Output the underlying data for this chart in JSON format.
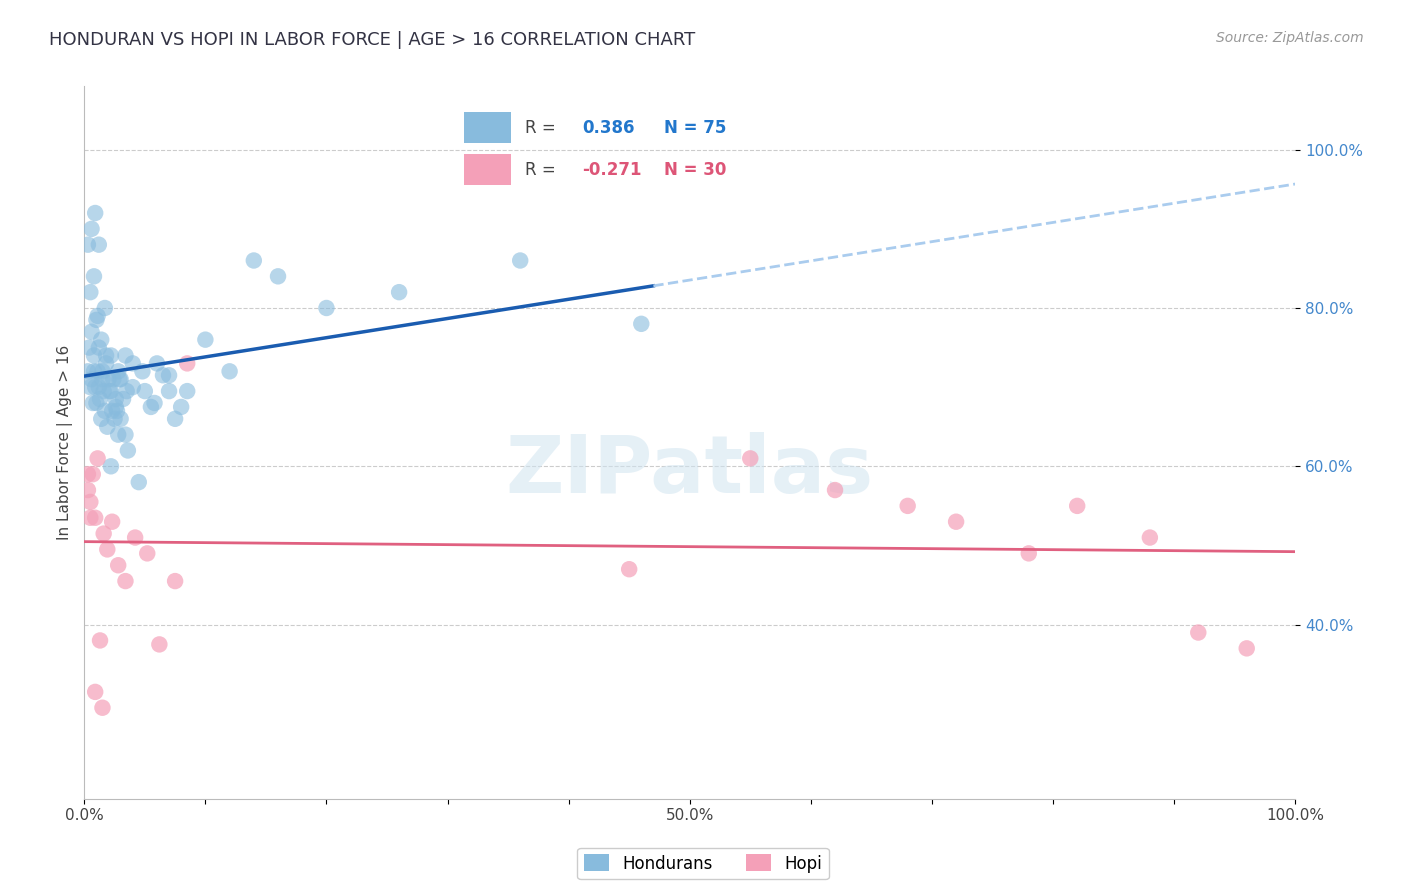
{
  "title": "HONDURAN VS HOPI IN LABOR FORCE | AGE > 16 CORRELATION CHART",
  "source": "Source: ZipAtlas.com",
  "ylabel": "In Labor Force | Age > 16",
  "xlim": [
    0.0,
    1.0
  ],
  "ylim": [
    0.18,
    1.08
  ],
  "xticks": [
    0.0,
    0.1,
    0.2,
    0.3,
    0.4,
    0.5,
    0.6,
    0.7,
    0.8,
    0.9,
    1.0
  ],
  "yticks": [
    0.4,
    0.6,
    0.8,
    1.0
  ],
  "xticklabels": [
    "0.0%",
    "",
    "",
    "",
    "",
    "50.0%",
    "",
    "",
    "",
    "",
    "100.0%"
  ],
  "yticklabels": [
    "40.0%",
    "60.0%",
    "80.0%",
    "100.0%"
  ],
  "hondurans_color": "#88bbdd",
  "hopi_color": "#f4a0b8",
  "blue_line_color": "#1a5cb0",
  "blue_dash_color": "#aaccee",
  "pink_line_color": "#e06080",
  "watermark": "ZIPatlas",
  "hondurans_R": "0.386",
  "hondurans_N": "75",
  "hopi_R": "-0.271",
  "hopi_N": "30",
  "hondurans_x": [
    0.003,
    0.005,
    0.006,
    0.007,
    0.008,
    0.009,
    0.01,
    0.011,
    0.012,
    0.013,
    0.014,
    0.015,
    0.016,
    0.017,
    0.018,
    0.019,
    0.02,
    0.021,
    0.022,
    0.023,
    0.024,
    0.025,
    0.026,
    0.027,
    0.028,
    0.029,
    0.03,
    0.032,
    0.034,
    0.036,
    0.004,
    0.006,
    0.008,
    0.01,
    0.012,
    0.015,
    0.018,
    0.022,
    0.026,
    0.03,
    0.035,
    0.04,
    0.045,
    0.05,
    0.055,
    0.06,
    0.065,
    0.07,
    0.075,
    0.08,
    0.005,
    0.008,
    0.011,
    0.014,
    0.017,
    0.022,
    0.028,
    0.034,
    0.04,
    0.048,
    0.058,
    0.07,
    0.085,
    0.1,
    0.12,
    0.14,
    0.16,
    0.2,
    0.26,
    0.36,
    0.46,
    0.003,
    0.006,
    0.009,
    0.012
  ],
  "hondurans_y": [
    0.72,
    0.7,
    0.71,
    0.68,
    0.72,
    0.7,
    0.68,
    0.72,
    0.7,
    0.685,
    0.66,
    0.71,
    0.695,
    0.67,
    0.73,
    0.65,
    0.71,
    0.695,
    0.6,
    0.67,
    0.71,
    0.66,
    0.685,
    0.67,
    0.64,
    0.71,
    0.66,
    0.685,
    0.64,
    0.62,
    0.75,
    0.77,
    0.74,
    0.785,
    0.75,
    0.72,
    0.74,
    0.695,
    0.675,
    0.71,
    0.695,
    0.73,
    0.58,
    0.695,
    0.675,
    0.73,
    0.715,
    0.695,
    0.66,
    0.675,
    0.82,
    0.84,
    0.79,
    0.76,
    0.8,
    0.74,
    0.72,
    0.74,
    0.7,
    0.72,
    0.68,
    0.715,
    0.695,
    0.76,
    0.72,
    0.86,
    0.84,
    0.8,
    0.82,
    0.86,
    0.78,
    0.88,
    0.9,
    0.92,
    0.88
  ],
  "hopi_x": [
    0.003,
    0.005,
    0.007,
    0.009,
    0.011,
    0.013,
    0.016,
    0.019,
    0.023,
    0.028,
    0.034,
    0.042,
    0.052,
    0.062,
    0.075,
    0.085,
    0.55,
    0.62,
    0.68,
    0.72,
    0.78,
    0.82,
    0.88,
    0.92,
    0.96,
    0.003,
    0.005,
    0.009,
    0.015,
    0.45
  ],
  "hopi_y": [
    0.57,
    0.555,
    0.59,
    0.535,
    0.61,
    0.38,
    0.515,
    0.495,
    0.53,
    0.475,
    0.455,
    0.51,
    0.49,
    0.375,
    0.455,
    0.73,
    0.61,
    0.57,
    0.55,
    0.53,
    0.49,
    0.55,
    0.51,
    0.39,
    0.37,
    0.59,
    0.535,
    0.315,
    0.295,
    0.47
  ]
}
